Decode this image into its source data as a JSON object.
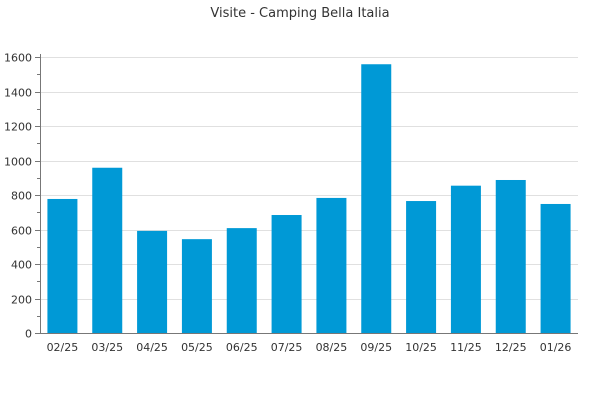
{
  "chart_data": {
    "type": "bar",
    "title": "Visite - Camping Bella Italia",
    "xlabel": "",
    "ylabel": "",
    "categories": [
      "02/25",
      "03/25",
      "04/25",
      "05/25",
      "06/25",
      "07/25",
      "08/25",
      "09/25",
      "10/25",
      "11/25",
      "12/25",
      "01/26"
    ],
    "values": [
      777,
      958,
      592,
      544,
      608,
      684,
      783,
      1558,
      765,
      854,
      887,
      748
    ],
    "ylim": [
      0,
      1600
    ],
    "yticks": [
      0,
      200,
      400,
      600,
      800,
      1000,
      1200,
      1400,
      1600
    ],
    "grid": true,
    "bar_color": "#0099d6",
    "legend": "none"
  }
}
